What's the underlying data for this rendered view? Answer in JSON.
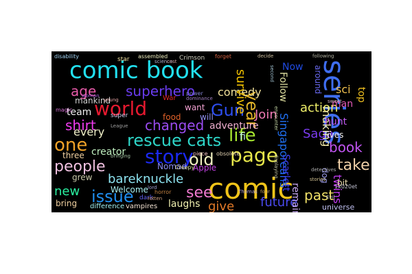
{
  "canvas": {
    "background": "#000000",
    "page_background": "#ffffff"
  },
  "words": [
    {
      "text": "comic book",
      "color": "#22e0f0"
    },
    {
      "text": "series",
      "color": "#3f6ef0"
    },
    {
      "text": "comic",
      "color": "#f0c419"
    },
    {
      "text": "world",
      "color": "#e5192f"
    },
    {
      "text": "superhero",
      "color": "#6a3cf0"
    },
    {
      "text": "age",
      "color": "#e55aa8"
    },
    {
      "text": "Gun",
      "color": "#2d4ef0"
    },
    {
      "text": "year",
      "color": "#e3b52a"
    },
    {
      "text": "story",
      "color": "#1b29f0"
    },
    {
      "text": "life",
      "color": "#a8e830"
    },
    {
      "text": "page",
      "color": "#e8e84b"
    },
    {
      "text": "old",
      "color": "#f0f0c0"
    },
    {
      "text": "one",
      "color": "#f0a228"
    },
    {
      "text": "shirt",
      "color": "#f03cf0"
    },
    {
      "text": "changed",
      "color": "#9a4cf0"
    },
    {
      "text": "rescue cats",
      "color": "#2ed5c8"
    },
    {
      "text": "people",
      "color": "#f0c0e0"
    },
    {
      "text": "issue",
      "color": "#1f8ef0"
    },
    {
      "text": "bareknuckle",
      "color": "#8de3f0"
    },
    {
      "text": "see",
      "color": "#f07ad0"
    },
    {
      "text": "future",
      "color": "#4a4af0"
    },
    {
      "text": "give",
      "color": "#e37a28"
    },
    {
      "text": "book",
      "color": "#c054f0"
    },
    {
      "text": "take",
      "color": "#f0d0a8"
    },
    {
      "text": "action",
      "color": "#f0f06a"
    },
    {
      "text": "past",
      "color": "#f0e068"
    },
    {
      "text": "twins",
      "color": "#c03cf0"
    },
    {
      "text": "Saga",
      "color": "#7a3cf0"
    },
    {
      "text": "new",
      "color": "#2af0a0"
    },
    {
      "text": "team",
      "color": "#f0f0f0"
    },
    {
      "text": "every",
      "color": "#f0f0c8"
    },
    {
      "text": "Join",
      "color": "#f07ab5"
    },
    {
      "text": "comedy",
      "color": "#f0e09a"
    },
    {
      "text": "adventure",
      "color": "#f0b0d0"
    },
    {
      "text": "Singaporeans",
      "color": "#1f6ef0"
    },
    {
      "text": "survive",
      "color": "#f0c000"
    },
    {
      "text": "Scarlett",
      "color": "#4040f0"
    },
    {
      "text": "remains",
      "color": "#c8a8f0"
    },
    {
      "text": "making",
      "color": "#f0e8a8"
    },
    {
      "text": "Now",
      "color": "#1f4ae0"
    },
    {
      "text": "sci",
      "color": "#f0c050"
    },
    {
      "text": "fi",
      "color": "#c0f0f0"
    },
    {
      "text": "man",
      "color": "#e35ab5"
    },
    {
      "text": "hunt",
      "color": "#c05af0"
    },
    {
      "text": "top",
      "color": "#f0c020"
    },
    {
      "text": "Follow",
      "color": "#e0e0a0"
    },
    {
      "text": "around",
      "color": "#6a6af0"
    },
    {
      "text": "mankind",
      "color": "#d0d0d0"
    },
    {
      "text": "want",
      "color": "#f0a0d0"
    },
    {
      "text": "food",
      "color": "#e06028"
    },
    {
      "text": "creator",
      "color": "#c0f0c0"
    },
    {
      "text": "three",
      "color": "#f0d0a0"
    },
    {
      "text": "Nomad",
      "color": "#8a8af0"
    },
    {
      "text": "Apple",
      "color": "#c040e0"
    },
    {
      "text": "laughs",
      "color": "#f0f0b0"
    },
    {
      "text": "Welcome",
      "color": "#a8f0f0"
    },
    {
      "text": "bring",
      "color": "#f0d0a0"
    },
    {
      "text": "grew",
      "color": "#c8c8a8"
    },
    {
      "text": "lives",
      "color": "#f0f0f0"
    },
    {
      "text": "bit",
      "color": "#f0e0b0"
    },
    {
      "text": "dog",
      "color": "#a0a0f0"
    },
    {
      "text": "universe",
      "color": "#c0c0f0"
    },
    {
      "text": "difference",
      "color": "#a0f0f0"
    },
    {
      "text": "vampires",
      "color": "#f0e0d0"
    },
    {
      "text": "Creepy",
      "color": "#e0e0a0"
    },
    {
      "text": "piece",
      "color": "#f0c0c0"
    },
    {
      "text": "obsolete",
      "color": "#e0d0b0"
    },
    {
      "text": "will",
      "color": "#9090f0"
    },
    {
      "text": "super",
      "color": "#d0d0f0"
    },
    {
      "text": "War",
      "color": "#e02828"
    },
    {
      "text": "Crimson",
      "color": "#d0d0c0"
    },
    {
      "text": "star",
      "color": "#f0e0a0"
    },
    {
      "text": "assembled",
      "color": "#f0f0c0"
    },
    {
      "text": "disability",
      "color": "#a0d0f0"
    },
    {
      "text": "dark",
      "color": "#6060f0"
    },
    {
      "text": "horror",
      "color": "#c08040"
    },
    {
      "text": "rotten",
      "color": "#d0a080"
    },
    {
      "text": "Evil",
      "color": "#c0c0c0"
    },
    {
      "text": "forget",
      "color": "#d06040"
    },
    {
      "text": "decide",
      "color": "#d0c0a0"
    },
    {
      "text": "magic",
      "color": "#d070d0"
    },
    {
      "text": "power",
      "color": "#8080d0"
    },
    {
      "text": "League",
      "color": "#a0a0a0"
    },
    {
      "text": "lord",
      "color": "#a0a0d0"
    },
    {
      "text": "young",
      "color": "#e0a0a0"
    },
    {
      "text": "science",
      "color": "#b0b0d0"
    },
    {
      "text": "stories",
      "color": "#d0c090"
    },
    {
      "text": "detectives",
      "color": "#b0b0b0"
    },
    {
      "text": "Thomas",
      "color": "#b0a0d0"
    },
    {
      "text": "four",
      "color": "#c0a060"
    },
    {
      "text": "displaying",
      "color": "#c0c0a0"
    },
    {
      "text": "second",
      "color": "#a0c0d0"
    },
    {
      "text": "cost",
      "color": "#d0a0a0"
    },
    {
      "text": "woman",
      "color": "#a060d0"
    },
    {
      "text": "sweet",
      "color": "#d0b0c0"
    },
    {
      "text": "following",
      "color": "#b0b0a0"
    },
    {
      "text": "1x020et",
      "color": "#c0c0d0"
    },
    {
      "text": "encounter",
      "color": "#c0d0a0"
    },
    {
      "text": "bringing",
      "color": "#a0c0a0"
    },
    {
      "text": "dominance",
      "color": "#a080c0"
    }
  ]
}
